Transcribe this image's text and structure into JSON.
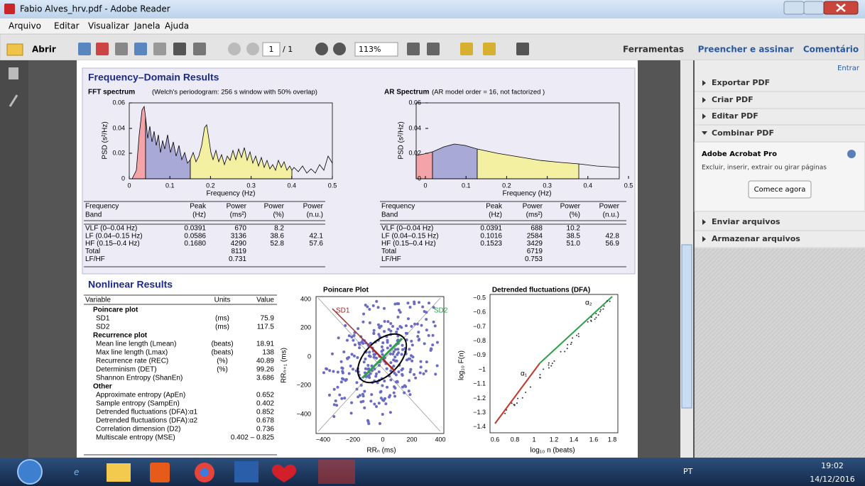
{
  "window": {
    "title": "Fabio Alves_hrv.pdf - Adobe Reader"
  },
  "menu": [
    "Arquivo",
    "Editar",
    "Visualizar",
    "Janela",
    "Ajuda"
  ],
  "toolbar": {
    "open": "Abrir",
    "page": "1",
    "page_total": "/ 1",
    "zoom": "113%",
    "tools": "Ferramentas",
    "fill_sign": "Preencher e assinar",
    "comment": "Comentário"
  },
  "sidebar": {
    "signin": "Entrar",
    "sections": [
      "Exportar PDF",
      "Criar PDF",
      "Editar PDF",
      "Combinar PDF"
    ],
    "product": "Adobe Acrobat Pro",
    "description": "Excluir, inserir, extrair ou girar páginas",
    "button": "Comece agora",
    "sections2": [
      "Enviar arquivos",
      "Armazenar arquivos"
    ]
  },
  "document": {
    "frequency": {
      "title": "Frequency–Domain Results",
      "fft": {
        "label": "FFT spectrum",
        "note": "(Welch's periodogram: 256 s window with 50% overlap)",
        "ylabel": "PSD (s²/Hz)",
        "xlabel": "Frequency (Hz)",
        "yticks": [
          "0.06",
          "0.04",
          "0.02",
          "0"
        ],
        "xticks": [
          "0",
          "0.1",
          "0.2",
          "0.3",
          "0.4",
          "0.5"
        ],
        "header_top": [
          "Frequency",
          "Peak",
          "Power",
          "Power",
          "Power"
        ],
        "header_bottom": [
          "Band",
          "(Hz)",
          "(ms²)",
          "(%)",
          "(n.u.)"
        ],
        "rows": [
          [
            "VLF (0–0.04 Hz)",
            "0.0391",
            "670",
            "8.2",
            null
          ],
          [
            "LF (0.04–0.15 Hz)",
            "0.0586",
            "3136",
            "38.6",
            "42.1"
          ],
          [
            "HF (0.15–0.4 Hz)",
            "0.1680",
            "4290",
            "52.8",
            "57.6"
          ],
          [
            "Total",
            null,
            "8119",
            null,
            null
          ],
          [
            "LF/HF",
            null,
            "0.731",
            null,
            null
          ]
        ]
      },
      "ar": {
        "label": "AR Spectrum",
        "note": "(AR model order = 16, not factorized )",
        "ylabel": "PSD (s²/Hz)",
        "xlabel": "Frequency (Hz)",
        "yticks": [
          "0.06",
          "0.04",
          "0.02",
          "0"
        ],
        "xticks": [
          "0",
          "0.1",
          "0.2",
          "0.3",
          "0.4",
          "0.5"
        ],
        "header_top": [
          "Frequency",
          "Peak",
          "Power",
          "Power",
          "Power"
        ],
        "header_bottom": [
          "Band",
          "(Hz)",
          "(ms²)",
          "(%)",
          "(n.u.)"
        ],
        "rows": [
          [
            "VLF (0–0.04 Hz)",
            "0.0391",
            "688",
            "10.2",
            null
          ],
          [
            "LF (0.04–0.15 Hz)",
            "0.1016",
            "2584",
            "38.5",
            "42.8"
          ],
          [
            "HF (0.15–0.4 Hz)",
            "0.1523",
            "3429",
            "51.0",
            "56.9"
          ],
          [
            "Total",
            null,
            "6719",
            null,
            null
          ],
          [
            "LF/HF",
            null,
            "0.753",
            null,
            null
          ]
        ]
      }
    },
    "nonlinear": {
      "title": "Nonlinear Results",
      "header": [
        "Variable",
        "Units",
        "Value"
      ],
      "sections": [
        {
          "title": "Poincare plot",
          "rows": [
            [
              "SD1",
              "(ms)",
              "75.9"
            ],
            [
              "SD2",
              "(ms)",
              "117.5"
            ]
          ]
        },
        {
          "title": "Recurrence plot",
          "rows": [
            [
              "Mean line length (Lmean)",
              "(beats)",
              "18.91"
            ],
            [
              "Max line length (Lmax)",
              "(beats)",
              "138"
            ],
            [
              "Recurrence rate (REC)",
              "(%)",
              "40.89"
            ],
            [
              "Determinism (DET)",
              "(%)",
              "99.26"
            ],
            [
              "Shannon Entropy (ShanEn)",
              null,
              "3.686"
            ]
          ]
        },
        {
          "title": "Other",
          "rows": [
            [
              "Approximate entropy (ApEn)",
              null,
              "0.652"
            ],
            [
              "Sample entropy (SampEn)",
              null,
              "0.402"
            ],
            [
              "Detrended fluctuations (DFA):α1",
              null,
              "0.852"
            ],
            [
              "Detrended fluctuations (DFA):α2",
              null,
              "0.678"
            ],
            [
              "Correlation dimension (D2)",
              null,
              "0.736"
            ],
            [
              "Multiscale entropy (MSE)",
              null,
              "0.402 – 0.825"
            ]
          ]
        }
      ],
      "poincare": {
        "title": "Poincare Plot",
        "yticks": [
          "400",
          "200",
          "0",
          "−200",
          "−400"
        ],
        "xticks": [
          "−400",
          "−200",
          "0",
          "200",
          "400"
        ],
        "xlabel": "RRₙ (ms)",
        "ylabel": "RRₙ₊₁ (ms)",
        "sd1": "SD1",
        "sd2": "SD2"
      },
      "dfa": {
        "title": "Detrended fluctuations (DFA)",
        "yticks": [
          "−0.5",
          "−0.6",
          "−0.7",
          "−0.8",
          "−0.9",
          "−1",
          "−1.1",
          "−1.2",
          "−1.3",
          "−1.4"
        ],
        "xticks": [
          "0.6",
          "0.8",
          "1",
          "1.2",
          "1.4",
          "1.6",
          "1.8"
        ],
        "xlabel": "log₁₀ n (beats)",
        "ylabel": "log₁₀ F(n)",
        "alpha1": "α₁",
        "alpha2": "α₂"
      }
    }
  },
  "taskbar": {
    "language": "PT",
    "time": "19:02",
    "date": "14/12/2016"
  }
}
